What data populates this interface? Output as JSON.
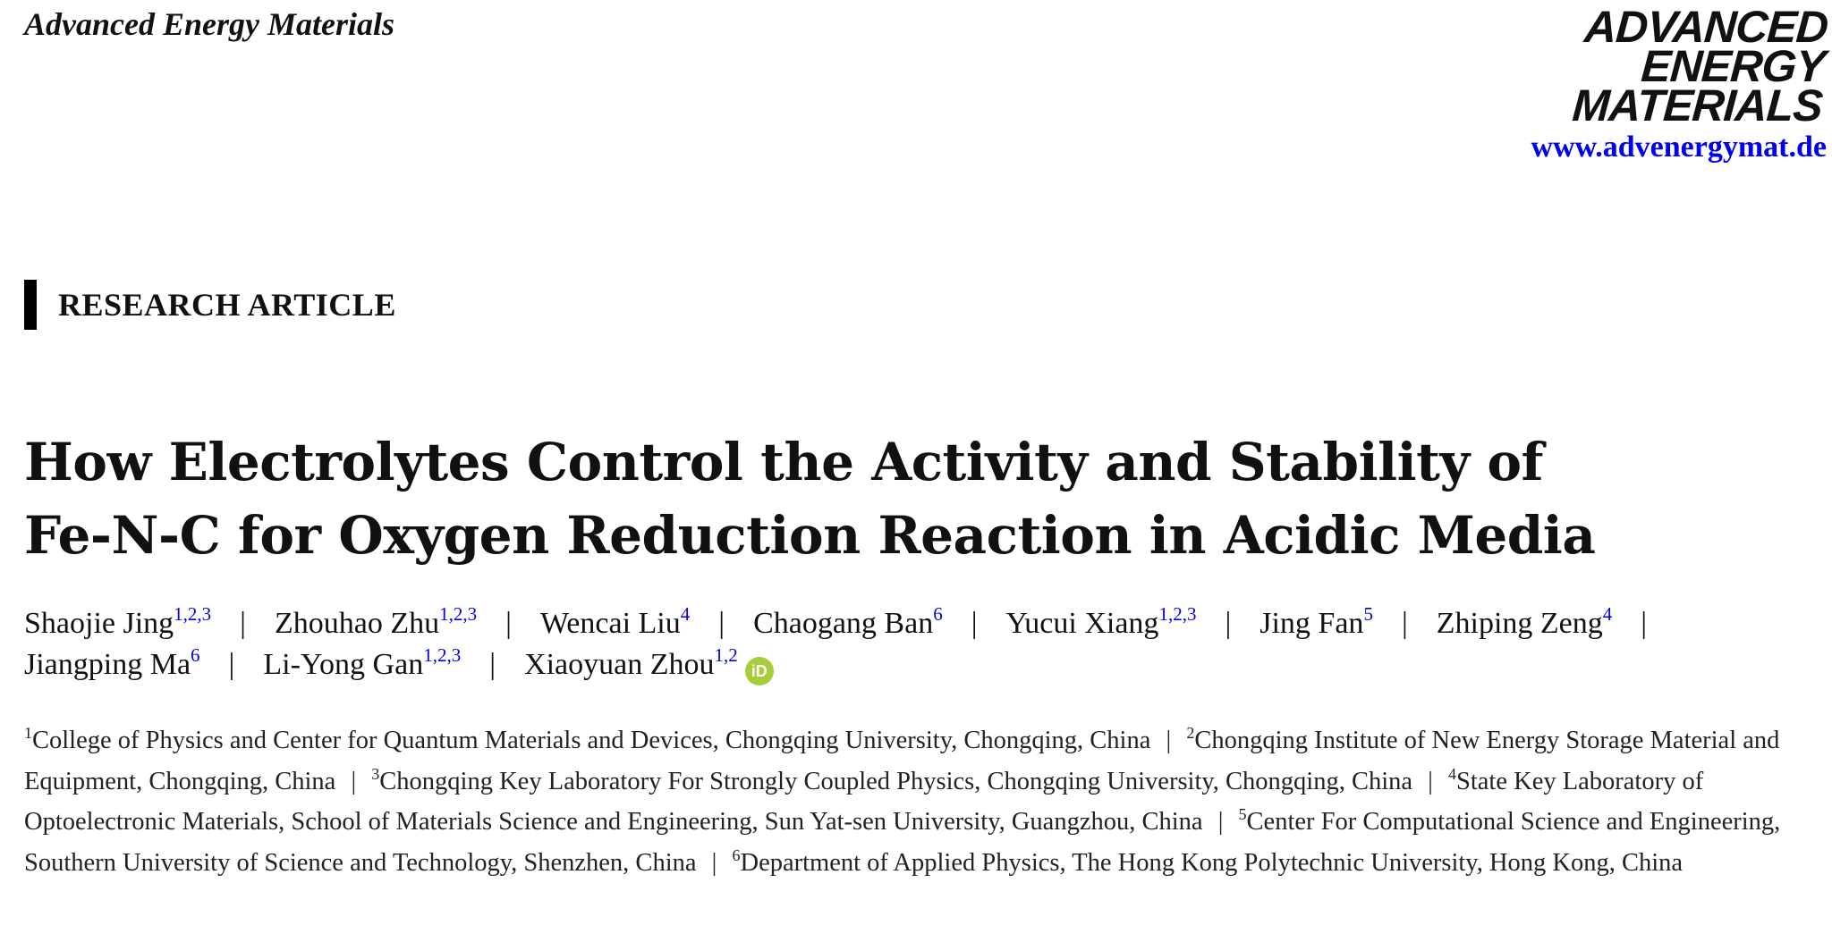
{
  "header": {
    "journal_name": "Advanced Energy Materials",
    "logo_lines": [
      "ADVANCED",
      "ENERGY",
      "MATERIALS"
    ],
    "url": "www.advenergymat.de",
    "link_color": "#0000ee"
  },
  "article_type": "RESEARCH ARTICLE",
  "title_lines": [
    "How Electrolytes Control the Activity and Stability of",
    "Fe-N-C for Oxygen Reduction Reaction in Acidic Media"
  ],
  "separator": "|",
  "authors": [
    [
      {
        "name": "Shaojie Jing",
        "aff": "1,2,3"
      },
      {
        "name": "Zhouhao Zhu",
        "aff": "1,2,3"
      },
      {
        "name": "Wencai Liu",
        "aff": "4"
      },
      {
        "name": "Chaogang Ban",
        "aff": "6"
      },
      {
        "name": "Yucui Xiang",
        "aff": "1,2,3"
      },
      {
        "name": "Jing Fan",
        "aff": "5"
      },
      {
        "name": "Zhiping Zeng",
        "aff": "4"
      }
    ],
    [
      {
        "name": "Jiangping Ma",
        "aff": "6"
      },
      {
        "name": "Li-Yong Gan",
        "aff": "1,2,3"
      },
      {
        "name": "Xiaoyuan Zhou",
        "aff": "1,2",
        "orcid": "iD"
      }
    ]
  ],
  "affiliations": [
    {
      "num": "1",
      "text": "College of Physics and Center for Quantum Materials and Devices, Chongqing University, Chongqing, China"
    },
    {
      "num": "2",
      "text": "Chongqing Institute of New Energy Storage Material and Equipment, Chongqing, China"
    },
    {
      "num": "3",
      "text": "Chongqing Key Laboratory For Strongly Coupled Physics, Chongqing University, Chongqing, China"
    },
    {
      "num": "4",
      "text": "State Key Laboratory of Optoelectronic Materials, School of Materials Science and Engineering, Sun Yat-sen University, Guangzhou, China"
    },
    {
      "num": "5",
      "text": "Center For Computational Science and Engineering, Southern University of Science and Technology, Shenzhen, China"
    },
    {
      "num": "6",
      "text": "Department of Applied Physics, The Hong Kong Polytechnic University, Hong Kong, China"
    }
  ]
}
